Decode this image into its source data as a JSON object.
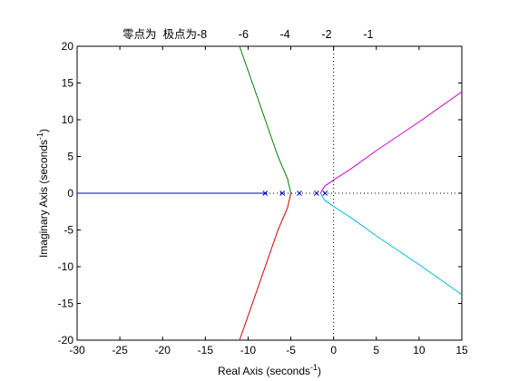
{
  "chart_data": {
    "type": "line",
    "title": "零点为  极点为-8          -6          -4          -2          -1",
    "xlabel": "Real Axis (seconds",
    "xlabel_sup": "-1",
    "xlabel_close": ")",
    "ylabel": "Imaginary Axis (seconds",
    "ylabel_sup": "-1",
    "ylabel_close": ")",
    "xlim": [
      -30,
      15
    ],
    "ylim": [
      -20,
      20
    ],
    "xticks": [
      -30,
      -25,
      -20,
      -15,
      -10,
      -5,
      0,
      5,
      10,
      15
    ],
    "yticks": [
      -20,
      -15,
      -10,
      -5,
      0,
      5,
      10,
      15,
      20
    ],
    "grid": false,
    "zero_lines": "dotted",
    "poles": [
      -8,
      -6,
      -4,
      -2,
      -1
    ],
    "series": [
      {
        "color": "#0000cc",
        "points": [
          [
            -30,
            0
          ],
          [
            -8,
            0
          ]
        ]
      },
      {
        "color": "#007f00",
        "points": [
          [
            -11,
            20
          ],
          [
            -9.5,
            15
          ],
          [
            -8,
            10
          ],
          [
            -6.5,
            5
          ],
          [
            -5.4,
            2
          ],
          [
            -5,
            0
          ]
        ]
      },
      {
        "color": "#cc0000",
        "points": [
          [
            -5,
            0
          ],
          [
            -5.4,
            -2
          ],
          [
            -6.5,
            -5
          ],
          [
            -8,
            -10
          ],
          [
            -9.5,
            -15
          ],
          [
            -11,
            -20
          ]
        ]
      },
      {
        "color": "#cc00cc",
        "points": [
          [
            -1.5,
            0
          ],
          [
            -1.3,
            0.5
          ],
          [
            -1,
            1
          ],
          [
            0,
            1.8
          ],
          [
            2,
            3.3
          ],
          [
            5,
            5.8
          ],
          [
            10,
            9.7
          ],
          [
            15,
            13.8
          ]
        ]
      },
      {
        "color": "#00bbdd",
        "points": [
          [
            -1.5,
            0
          ],
          [
            -1.3,
            -0.5
          ],
          [
            -1,
            -1
          ],
          [
            0,
            -1.8
          ],
          [
            2,
            -3.3
          ],
          [
            5,
            -5.8
          ],
          [
            10,
            -9.7
          ],
          [
            15,
            -13.8
          ]
        ]
      }
    ]
  }
}
